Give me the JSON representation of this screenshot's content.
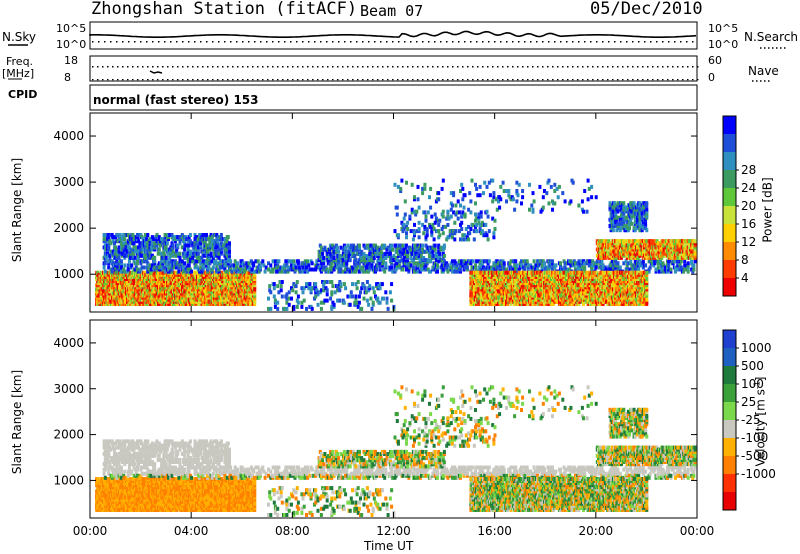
{
  "header": {
    "station": "Zhongshan Station (fitACF)",
    "beam": "Beam 07",
    "date": "05/Dec/2010"
  },
  "panels": {
    "nsky_label": "N.Sky",
    "nsky_ticks": [
      "10^5",
      "10^0"
    ],
    "nsearch_label": "N.Search",
    "nsearch_ticks": [
      "10^5",
      "10^0"
    ],
    "freq_label": "Freq.",
    "freq_unit": "[MHz]",
    "freq_ticks": [
      "18",
      "8"
    ],
    "nave_label": "Nave",
    "nave_ticks": [
      "60",
      "0"
    ],
    "cpid_label": "CPID",
    "cpid_value": "normal (fast stereo) 153"
  },
  "chart_data": [
    {
      "type": "heatmap",
      "name": "power",
      "ylabel": "Slant Range [km]",
      "xlabel": "Time UT",
      "x_ticks": [
        "00:00",
        "04:00",
        "08:00",
        "12:00",
        "16:00",
        "20:00",
        "00:00"
      ],
      "y_ticks": [
        1000,
        2000,
        3000,
        4000
      ],
      "ylim": [
        180,
        4500
      ],
      "xlim_hours": [
        0,
        24
      ],
      "colorbar": {
        "label": "Power [dB]",
        "ticks": [
          4,
          8,
          12,
          16,
          20,
          24,
          28
        ],
        "colors": [
          "#0000ff",
          "#1f4fd8",
          "#2f8fbf",
          "#3a9a60",
          "#5fc83a",
          "#c8e23a",
          "#ffd000",
          "#ff8c00",
          "#ff3c00",
          "#ee0000"
        ]
      }
    },
    {
      "type": "heatmap",
      "name": "velocity",
      "ylabel": "Slant Range [km]",
      "xlabel": "Time UT",
      "x_ticks": [
        "00:00",
        "04:00",
        "08:00",
        "12:00",
        "16:00",
        "20:00",
        "00:00"
      ],
      "y_ticks": [
        1000,
        2000,
        3000,
        4000
      ],
      "ylim": [
        180,
        4500
      ],
      "xlim_hours": [
        0,
        24
      ],
      "colorbar": {
        "label": "Velocity [m s-1]",
        "label_main": "Velocity [m s",
        "label_sup": "-1",
        "label_end": "]",
        "ticks": [
          "1000",
          "500",
          "100",
          "25",
          "-25",
          "-100",
          "-500",
          "-1000"
        ],
        "colors": [
          "#2040d0",
          "#2060c0",
          "#1e7a3c",
          "#3aa03a",
          "#7ad84a",
          "#c8c8c0",
          "#ffb000",
          "#ff8000",
          "#ff3000",
          "#e80000"
        ]
      }
    }
  ]
}
